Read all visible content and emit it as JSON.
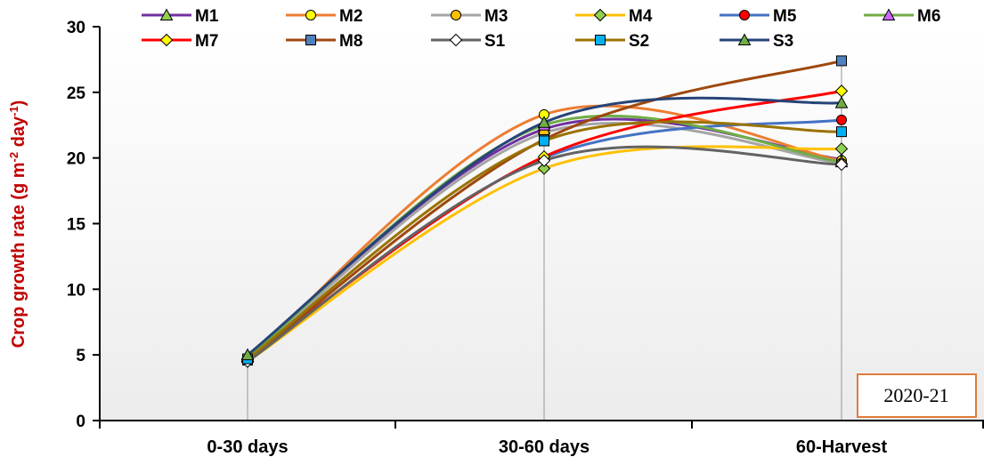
{
  "chart_data": {
    "type": "line",
    "categories": [
      "0-30 days",
      "30-60 days",
      "60-Harvest"
    ],
    "ylabel_main": "Crop growth rate (g m",
    "ylabel_sup1": "-2",
    "ylabel_mid": " day",
    "ylabel_sup2": "-1",
    "ylabel_end": ")",
    "ylim": [
      0,
      30
    ],
    "yticks": [
      "0",
      "5",
      "10",
      "15",
      "20",
      "25",
      "30"
    ],
    "annotation": "2020-21",
    "annotation_border": "#e07b39",
    "series": [
      {
        "name": "M1",
        "values": [
          4.9,
          22.2,
          19.9
        ],
        "color": "#7030a0",
        "marker": "triangle",
        "marker_fill": "#92d050"
      },
      {
        "name": "M2",
        "values": [
          4.6,
          23.3,
          19.8
        ],
        "color": "#ed7d31",
        "marker": "circle",
        "marker_fill": "#ffff00"
      },
      {
        "name": "M3",
        "values": [
          4.7,
          21.9,
          19.6
        ],
        "color": "#a5a5a5",
        "marker": "circle",
        "marker_fill": "#ffc000"
      },
      {
        "name": "M4",
        "values": [
          4.5,
          19.2,
          20.7
        ],
        "color": "#ffc000",
        "marker": "diamond",
        "marker_fill": "#92d050"
      },
      {
        "name": "M5",
        "values": [
          4.6,
          20.0,
          22.9
        ],
        "color": "#4472c4",
        "marker": "circle",
        "marker_fill": "#ff0000"
      },
      {
        "name": "M6",
        "values": [
          4.8,
          22.5,
          19.7
        ],
        "color": "#70ad47",
        "marker": "triangle",
        "marker_fill": "#cc66ff"
      },
      {
        "name": "M7",
        "values": [
          4.7,
          20.1,
          25.1
        ],
        "color": "#ff0000",
        "marker": "diamond",
        "marker_fill": "#ffff00"
      },
      {
        "name": "M8",
        "values": [
          4.6,
          21.4,
          27.4
        ],
        "color": "#9e480e",
        "marker": "square",
        "marker_fill": "#4f81bd"
      },
      {
        "name": "S1",
        "values": [
          4.5,
          19.8,
          19.5
        ],
        "color": "#636363",
        "marker": "diamond",
        "marker_fill": "#ffffff"
      },
      {
        "name": "S2",
        "values": [
          4.7,
          21.3,
          22.0
        ],
        "color": "#997300",
        "marker": "square",
        "marker_fill": "#00b0f0"
      },
      {
        "name": "S3",
        "values": [
          5.0,
          22.7,
          24.2
        ],
        "color": "#264478",
        "marker": "triangle",
        "marker_fill": "#70ad47"
      }
    ]
  }
}
